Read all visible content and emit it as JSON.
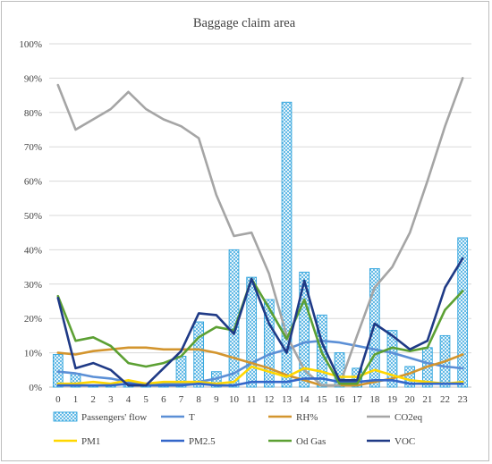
{
  "chart_data": {
    "type": "bar",
    "title": "Baggage claim area",
    "xlabel": "",
    "ylabel": "",
    "ylim": [
      0,
      100
    ],
    "y_ticks": [
      "0%",
      "10%",
      "20%",
      "30%",
      "40%",
      "50%",
      "60%",
      "70%",
      "80%",
      "90%",
      "100%"
    ],
    "categories": [
      "0",
      "1",
      "2",
      "3",
      "4",
      "5",
      "6",
      "7",
      "8",
      "9",
      "10",
      "11",
      "12",
      "13",
      "14",
      "15",
      "16",
      "17",
      "18",
      "19",
      "20",
      "21",
      "22",
      "23"
    ],
    "grid": true,
    "legend_position": "bottom",
    "bar_series": {
      "name": "Passengers' flow",
      "color": "#2ea3dd",
      "fill_pattern": "crosshatch",
      "values": [
        9.5,
        4,
        0.5,
        0.5,
        1,
        0.5,
        1,
        9,
        19,
        4.5,
        40,
        32,
        25.5,
        83,
        33.5,
        21,
        10,
        5.5,
        34.5,
        16.5,
        6,
        11.5,
        15,
        43.5
      ]
    },
    "series": [
      {
        "name": "T",
        "color": "#5b8fd6",
        "values": [
          4.5,
          4,
          3,
          2.5,
          1.5,
          1,
          1,
          1,
          1.5,
          2.5,
          4,
          7,
          9.5,
          11,
          13,
          13.5,
          13,
          12,
          11,
          10,
          8.5,
          7,
          6,
          5.5
        ]
      },
      {
        "name": "RH%",
        "color": "#d3952e",
        "values": [
          10,
          9.5,
          10.5,
          11,
          11.5,
          11.5,
          11,
          11,
          11,
          10,
          8.5,
          7,
          5.5,
          3.5,
          2,
          0.5,
          0.5,
          0.5,
          1.5,
          2.5,
          4,
          6,
          7.5,
          9.5
        ]
      },
      {
        "name": "CO2eq",
        "color": "#a5a5a5",
        "values": [
          88,
          75,
          78,
          81,
          86,
          81,
          78,
          76,
          72.5,
          56,
          44,
          45,
          33,
          15,
          5,
          0.5,
          0.5,
          15,
          29,
          35,
          45,
          60,
          76,
          90
        ]
      },
      {
        "name": "PM1",
        "color": "#ffd700",
        "values": [
          1,
          1,
          1.5,
          1,
          2,
          1,
          1.5,
          1.5,
          1.5,
          1,
          1.5,
          6,
          4.5,
          3,
          5.5,
          4.5,
          3,
          3,
          5,
          3.5,
          2,
          1.5,
          1,
          1.5
        ]
      },
      {
        "name": "PM2.5",
        "color": "#3366c9",
        "values": [
          0.5,
          0.5,
          0.5,
          0.5,
          1,
          0.5,
          0.5,
          0.5,
          1,
          0.5,
          0.5,
          1.5,
          1.5,
          1.5,
          2.5,
          2.5,
          1.5,
          1.5,
          2,
          2,
          1,
          1,
          1,
          1
        ]
      },
      {
        "name": "Od Gas",
        "color": "#5ca033",
        "values": [
          26.5,
          13.5,
          14.5,
          12,
          7,
          6,
          7,
          9,
          14.5,
          17.5,
          16.5,
          31.5,
          23,
          14,
          25.5,
          10,
          1,
          1,
          9.5,
          11.5,
          10.5,
          11.5,
          22.5,
          28
        ]
      },
      {
        "name": "VOC",
        "color": "#1f3a86",
        "values": [
          26,
          5.5,
          7,
          5,
          0.5,
          0.5,
          5.5,
          10.5,
          21.5,
          21,
          15.5,
          31.5,
          18.5,
          10,
          31,
          13,
          2,
          2,
          18.5,
          15,
          11,
          13.5,
          29,
          37.5
        ]
      }
    ]
  }
}
